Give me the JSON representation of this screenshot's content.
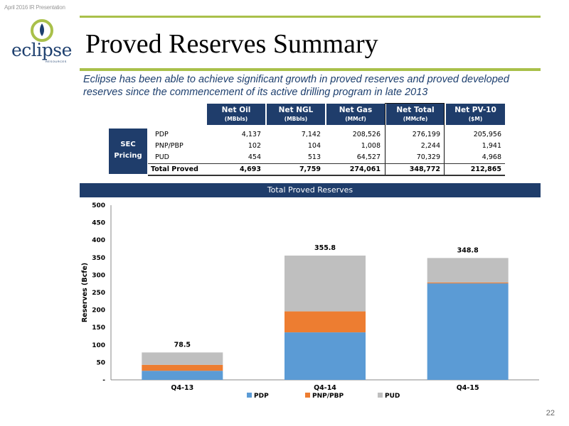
{
  "header_note": "April 2016 IR Presentation",
  "logo": {
    "word": "eclipse",
    "sub": "RESOURCES"
  },
  "title": "Proved Reserves Summary",
  "subtitle": "Eclipse has been able to achieve significant growth in proved reserves and proved developed reserves since the commencement of its active drilling program in late 2013",
  "table": {
    "columns": [
      {
        "label": "Net Oil",
        "unit": "(MBbls)"
      },
      {
        "label": "Net NGL",
        "unit": "(MBbls)"
      },
      {
        "label": "Net Gas",
        "unit": "(MMcf)"
      },
      {
        "label": "Net Total",
        "unit": "(MMcfe)"
      },
      {
        "label": "Net PV-10",
        "unit": "($M)"
      }
    ],
    "group_label_1": "SEC",
    "group_label_2": "Pricing",
    "rows": [
      {
        "label": "PDP",
        "values": [
          "4,137",
          "7,142",
          "208,526",
          "276,199",
          "205,956"
        ]
      },
      {
        "label": "PNP/PBP",
        "values": [
          "102",
          "104",
          "1,008",
          "2,244",
          "1,941"
        ]
      },
      {
        "label": "PUD",
        "values": [
          "454",
          "513",
          "64,527",
          "70,329",
          "4,968"
        ]
      },
      {
        "label": "Total Proved",
        "values": [
          "4,693",
          "7,759",
          "274,061",
          "348,772",
          "212,865"
        ]
      }
    ]
  },
  "chart_data": {
    "type": "bar",
    "stacked": true,
    "title": "Total Proved Reserves",
    "ylabel": "Reserves (Bcfe)",
    "ylim": [
      0,
      500
    ],
    "yticks": [
      0,
      50,
      100,
      150,
      200,
      250,
      300,
      350,
      400,
      450,
      500
    ],
    "ytick_labels": [
      "-",
      "50",
      "100",
      "150",
      "200",
      "250",
      "300",
      "350",
      "400",
      "450",
      "500"
    ],
    "categories": [
      "Q4-13",
      "Q4-14",
      "Q4-15"
    ],
    "series": [
      {
        "name": "PDP",
        "color": "#5b9bd5",
        "values": [
          26,
          136,
          276.2
        ]
      },
      {
        "name": "PNP/PBP",
        "color": "#ed7d31",
        "values": [
          17,
          60,
          2.3
        ]
      },
      {
        "name": "PUD",
        "color": "#bfbfbf",
        "values": [
          35.5,
          159.8,
          70.3
        ]
      }
    ],
    "totals": [
      "78.5",
      "355.8",
      "348.8"
    ],
    "legend_position": "bottom",
    "grid": false
  },
  "page_number": "22"
}
